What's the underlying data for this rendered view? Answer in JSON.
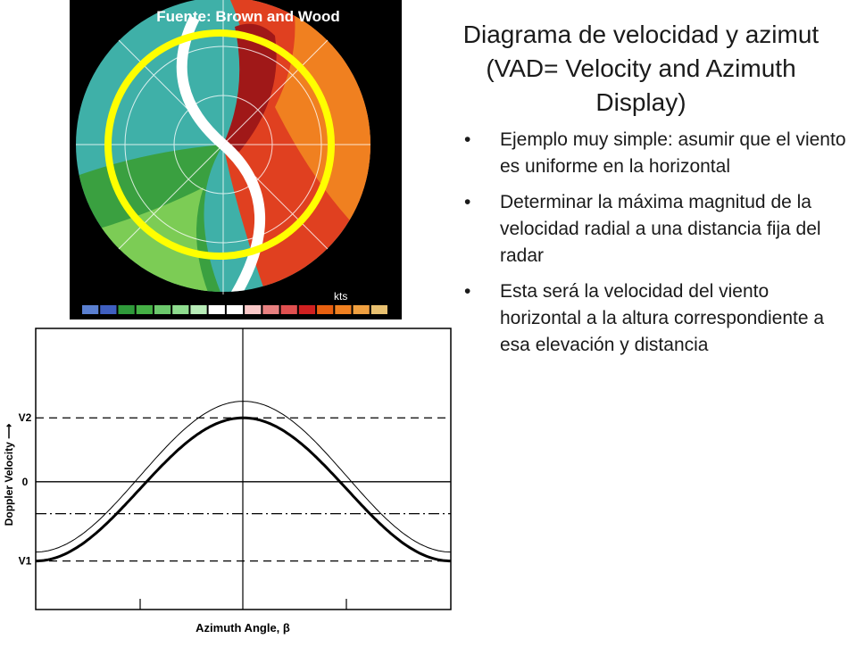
{
  "source_label": "Fuente: Brown and Wood",
  "title_lines": [
    "Diagrama de velocidad  y azimut",
    "(VAD= Velocity and Azimuth",
    "Display)"
  ],
  "bullets": [
    "Ejemplo muy simple: asumir que el viento es uniforme en la horizontal",
    "Determinar la máxima magnitud de la velocidad radial a una distancia fija del radar",
    "Esta será la velocidad del viento horizontal a la altura correspondiente a esa elevación y distancia"
  ],
  "radar": {
    "units_label": "kts",
    "colorbar_colors": [
      "#5a7fd0",
      "#3f5fc0",
      "#2f9a3a",
      "#45b045",
      "#6cc86c",
      "#8fdc8f",
      "#b8ecb8",
      "#ffffff",
      "#ffffff",
      "#f8c8c8",
      "#e88080",
      "#e05050",
      "#d02020",
      "#e86010",
      "#f08020",
      "#f0a040",
      "#e8c070"
    ],
    "circle_color": "#ffff00"
  },
  "chart_data": {
    "type": "line",
    "xlabel": "Azimuth Angle, β",
    "ylabel": "Doppler Velocity ⟶",
    "y_tick_labels": [
      "V2",
      "0",
      "V1"
    ],
    "series": [
      {
        "values": {
          "min": -0.62,
          "max": 0.5
        }
      },
      {
        "values": {
          "min": -0.55,
          "max": 0.63
        }
      }
    ],
    "reference_lines": [
      {
        "style": "dashed",
        "value": 0.5
      },
      {
        "style": "solid",
        "value": 0
      },
      {
        "style": "dash-dot",
        "value": -0.25
      },
      {
        "style": "dashed",
        "value": -0.62
      }
    ],
    "ylim": [
      -1,
      1.2
    ],
    "grid": false
  }
}
